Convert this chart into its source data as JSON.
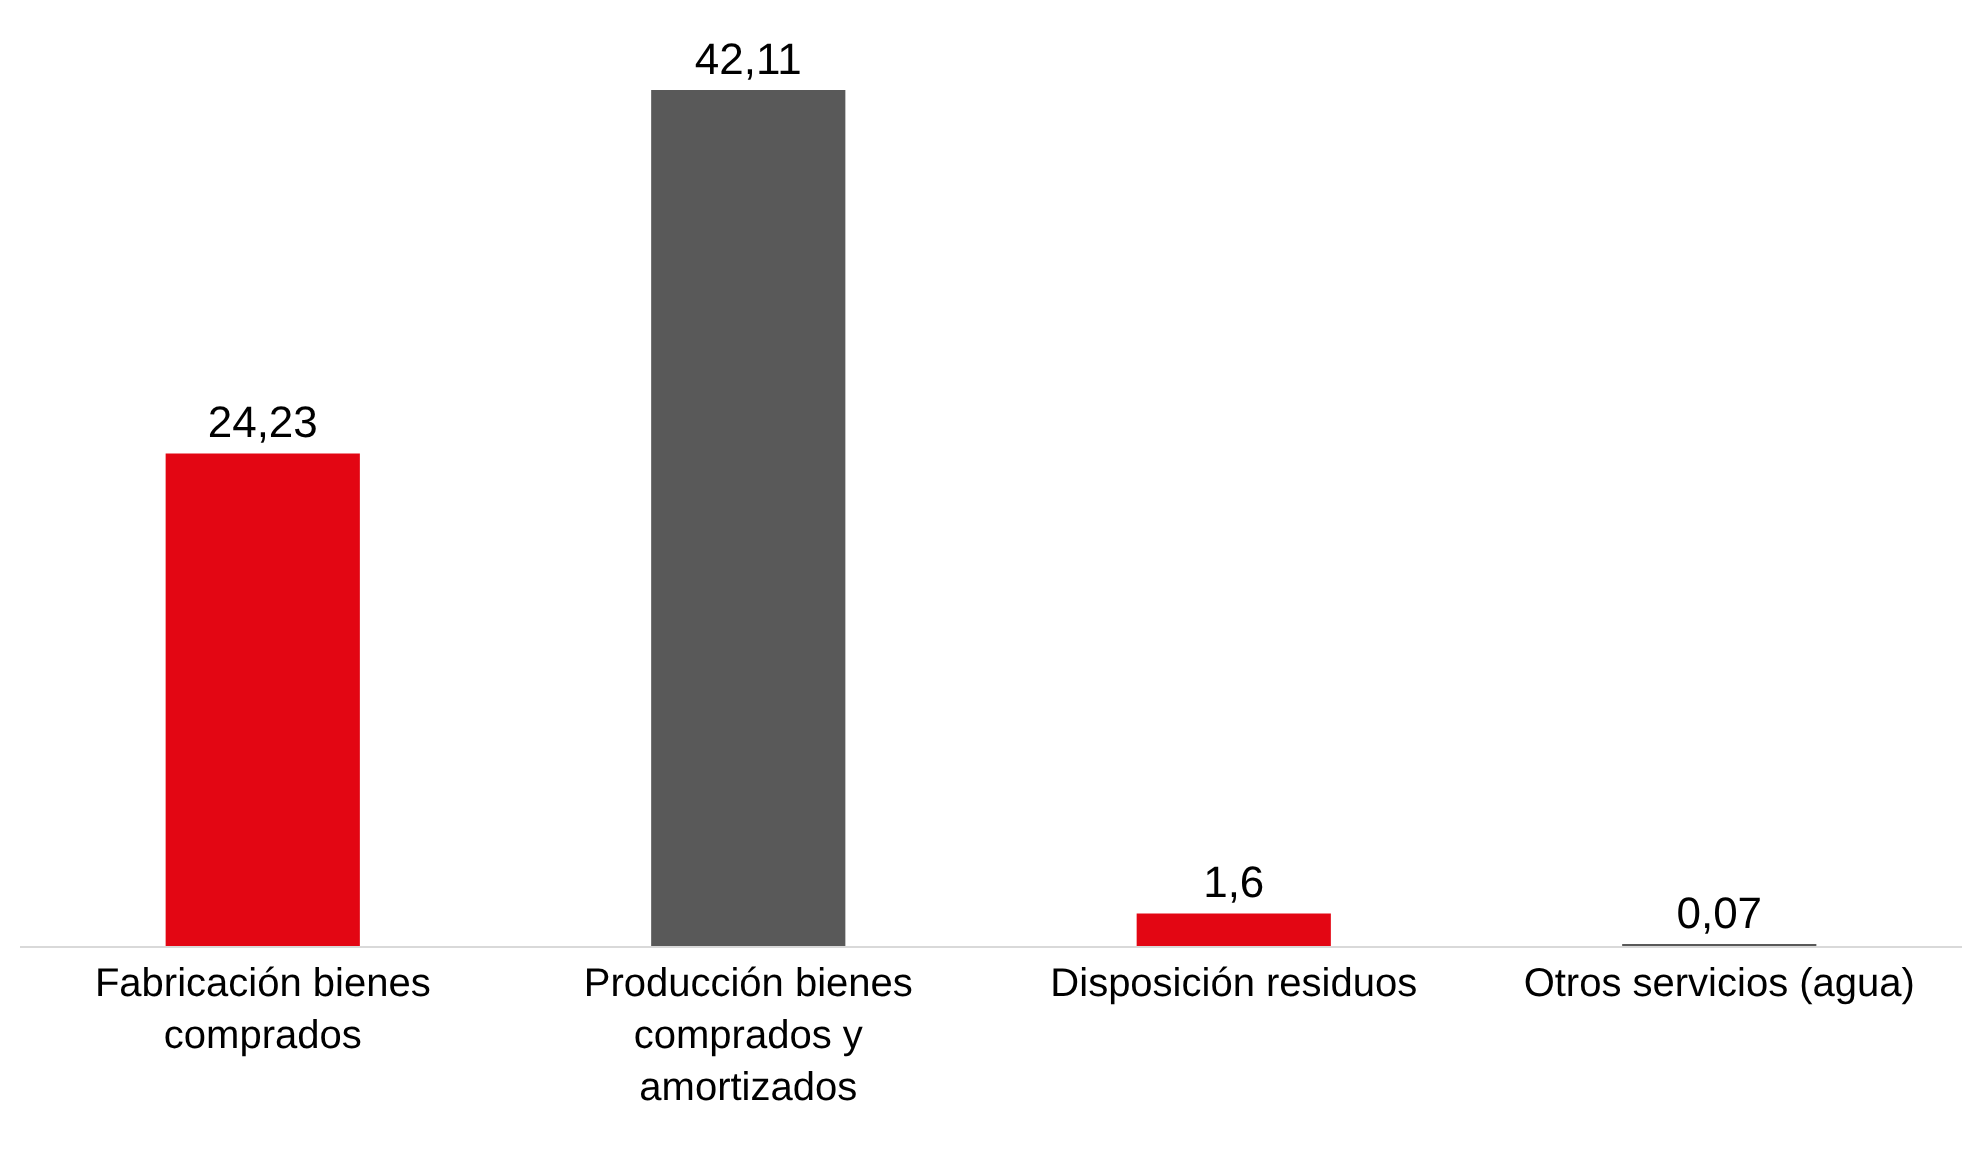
{
  "chart_data": {
    "type": "bar",
    "categories": [
      "Fabricación bienes comprados",
      "Producción bienes comprados y amortizados",
      "Disposición residuos",
      "Otros servicios (agua)"
    ],
    "values": [
      24.23,
      42.11,
      1.6,
      0.07
    ],
    "colors": [
      "#e30613",
      "#595959",
      "#e30613",
      "#595959"
    ],
    "value_labels": [
      "24,23",
      "42,11",
      "1,6",
      "0,07"
    ]
  }
}
